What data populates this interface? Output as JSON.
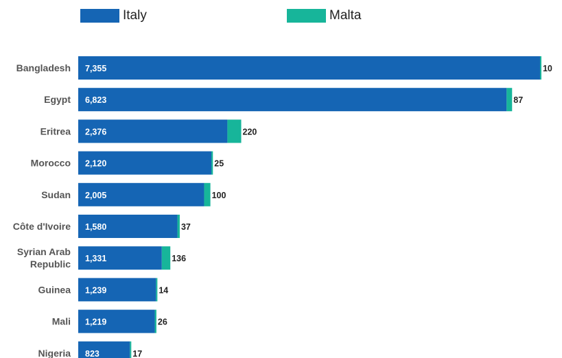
{
  "colors": {
    "italy": "#1565b4",
    "malta": "#17b59a"
  },
  "legend": [
    {
      "label": "Italy",
      "color": "#1565b4"
    },
    {
      "label": "Malta",
      "color": "#17b59a"
    }
  ],
  "chart_data": {
    "type": "bar",
    "orientation": "horizontal",
    "stacked": true,
    "categories": [
      "Bangladesh",
      "Egypt",
      "Eritrea",
      "Morocco",
      "Sudan",
      "Côte d'Ivoire",
      "Syrian Arab Republic",
      "Guinea",
      "Mali",
      "Nigeria"
    ],
    "series": [
      {
        "name": "Italy",
        "color": "#1565b4",
        "values": [
          7355,
          6823,
          2376,
          2120,
          2005,
          1580,
          1331,
          1239,
          1219,
          823
        ]
      },
      {
        "name": "Malta",
        "color": "#17b59a",
        "values": [
          10,
          87,
          220,
          25,
          100,
          37,
          136,
          14,
          26,
          17
        ]
      }
    ],
    "value_labels": {
      "Italy": [
        "7,355",
        "6,823",
        "2,376",
        "2,120",
        "2,005",
        "1,580",
        "1,331",
        "1,239",
        "1,219",
        "823"
      ],
      "Malta": [
        "10",
        "87",
        "220",
        "25",
        "100",
        "37",
        "136",
        "14",
        "26",
        "17"
      ]
    },
    "legend_position": "top",
    "grid": false
  }
}
